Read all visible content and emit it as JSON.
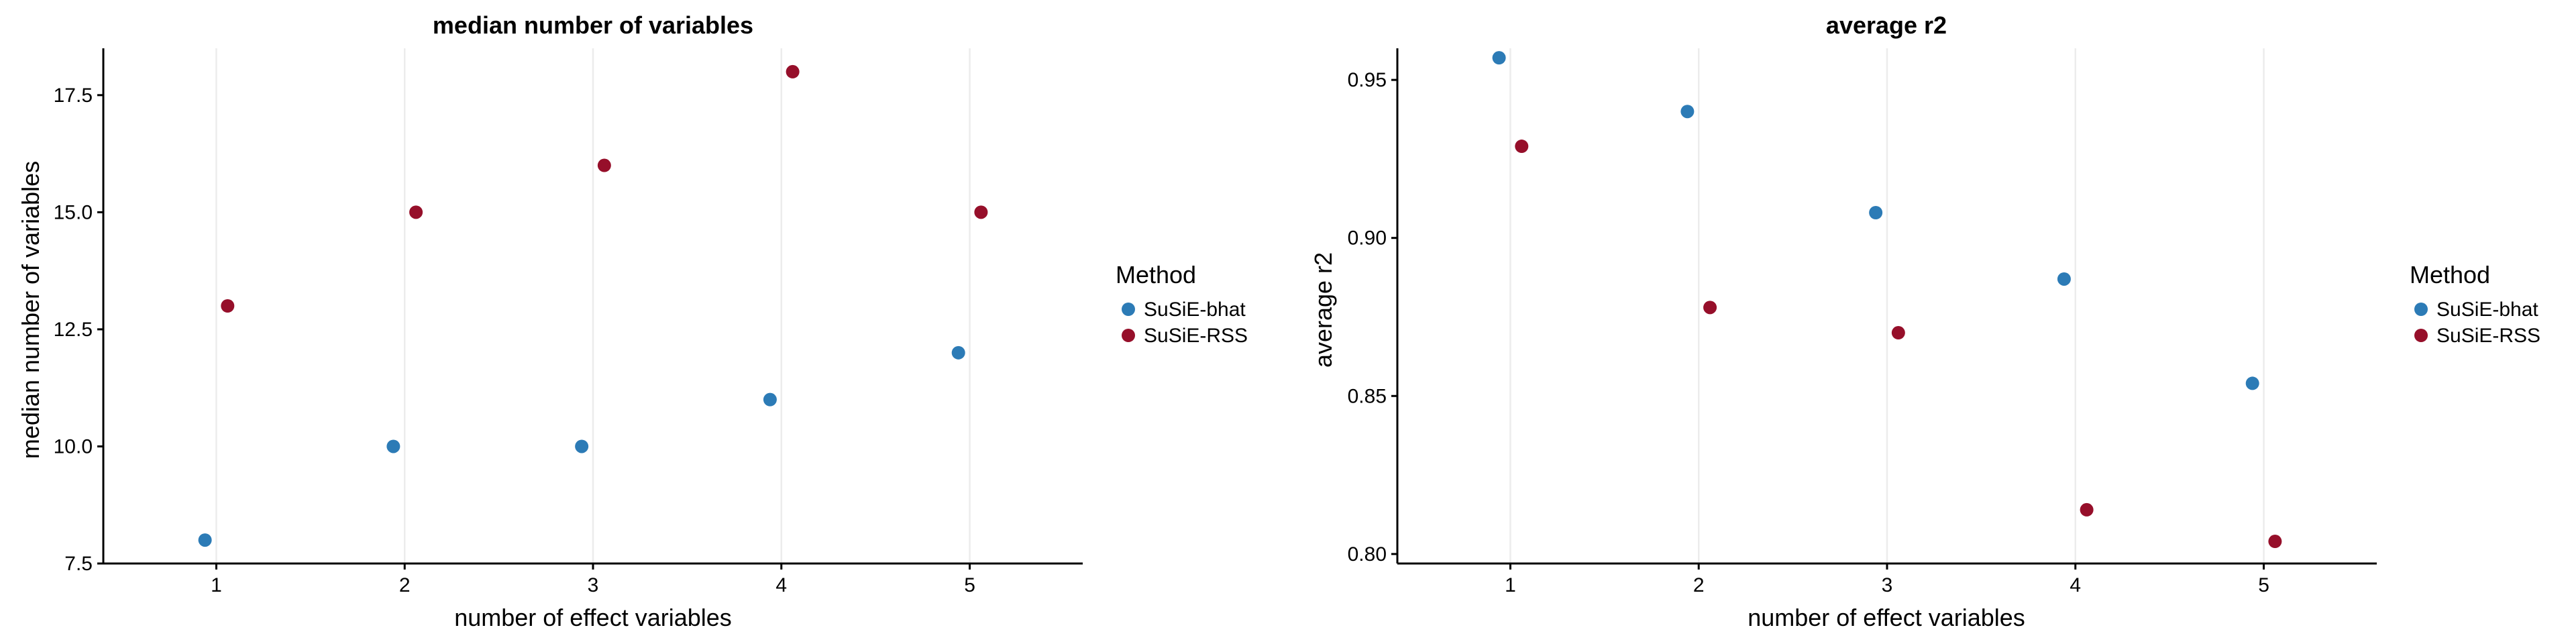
{
  "colors": {
    "SuSiE-bhat": "#2c7bb6",
    "SuSiE-RSS": "#960f2a"
  },
  "chart_data": [
    {
      "type": "scatter",
      "title": "median number of variables",
      "xlabel": "number of effect variables",
      "ylabel": "median number of variables",
      "x_ticks": [
        "1",
        "2",
        "3",
        "4",
        "5"
      ],
      "y_ticks": [
        "7.5",
        "10.0",
        "12.5",
        "15.0",
        "17.5"
      ],
      "y_tick_values": [
        7.5,
        10.0,
        12.5,
        15.0,
        17.5
      ],
      "xlim": [
        0.4,
        5.6
      ],
      "ylim": [
        7.5,
        18.5
      ],
      "grid": "vertical",
      "legend": {
        "title": "Method",
        "position": "right",
        "entries": [
          "SuSiE-bhat",
          "SuSiE-RSS"
        ]
      },
      "series": [
        {
          "name": "SuSiE-bhat",
          "x": [
            1,
            2,
            3,
            4,
            5
          ],
          "values": [
            8,
            10,
            10,
            11,
            12
          ]
        },
        {
          "name": "SuSiE-RSS",
          "x": [
            1,
            2,
            3,
            4,
            5
          ],
          "values": [
            13,
            15,
            16,
            18,
            15
          ]
        }
      ]
    },
    {
      "type": "scatter",
      "title": "average r2",
      "xlabel": "number of effect variables",
      "ylabel": "average r2",
      "x_ticks": [
        "1",
        "2",
        "3",
        "4",
        "5"
      ],
      "y_ticks": [
        "0.80",
        "0.85",
        "0.90",
        "0.95"
      ],
      "y_tick_values": [
        0.8,
        0.85,
        0.9,
        0.95
      ],
      "xlim": [
        0.4,
        5.6
      ],
      "ylim": [
        0.797,
        0.96
      ],
      "grid": "vertical",
      "legend": {
        "title": "Method",
        "position": "right",
        "entries": [
          "SuSiE-bhat",
          "SuSiE-RSS"
        ]
      },
      "series": [
        {
          "name": "SuSiE-bhat",
          "x": [
            1,
            2,
            3,
            4,
            5
          ],
          "values": [
            0.957,
            0.94,
            0.908,
            0.887,
            0.854
          ]
        },
        {
          "name": "SuSiE-RSS",
          "x": [
            1,
            2,
            3,
            4,
            5
          ],
          "values": [
            0.929,
            0.878,
            0.87,
            0.814,
            0.804
          ]
        }
      ]
    }
  ]
}
